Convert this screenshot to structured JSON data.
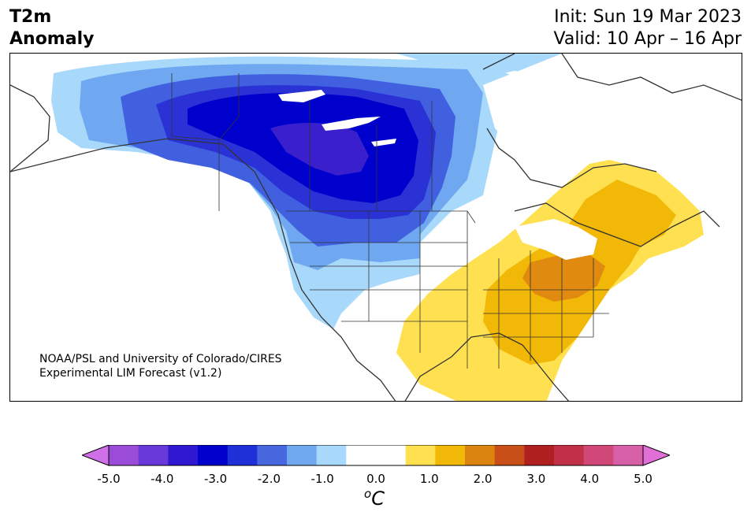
{
  "header": {
    "variable": "T2m",
    "subtitle": "Anomaly",
    "init": "Init: Sun 19 Mar 2023",
    "valid": "Valid: 10 Apr – 16 Apr"
  },
  "map": {
    "credit_line1": "NOAA/PSL and University of Colorado/CIRES",
    "credit_line2": "Experimental LIM Forecast (v1.2)",
    "palette": {
      "cold_3": "#0000cc",
      "cold_2_5": "#2a32d6",
      "cold_2": "#4060e0",
      "cold_1_5": "#6fa8f0",
      "cold_1": "#a8d8fa",
      "neutral": "#ffffff",
      "warm_1": "#ffe050",
      "warm_1_5": "#f2b807",
      "warm_2": "#e08a10",
      "coast": "#333333",
      "cold_core": "#3a20cc"
    }
  },
  "colorbar": {
    "unit": "C",
    "unit_sup": "o",
    "colors": [
      "#d070e8",
      "#9a4cd8",
      "#6838d8",
      "#3018d0",
      "#0000cc",
      "#2030d8",
      "#4868e0",
      "#70a8f0",
      "#a8d8fa",
      "#ffffff",
      "#ffffff",
      "#ffe050",
      "#f2b807",
      "#dc8410",
      "#c85018",
      "#b02020",
      "#c03048",
      "#d04878",
      "#d860a8",
      "#e070d8"
    ],
    "ticks": [
      "-5.0",
      "-4.0",
      "-3.0",
      "-2.0",
      "-1.0",
      "0.0",
      "1.0",
      "2.0",
      "3.0",
      "4.0",
      "5.0"
    ]
  }
}
